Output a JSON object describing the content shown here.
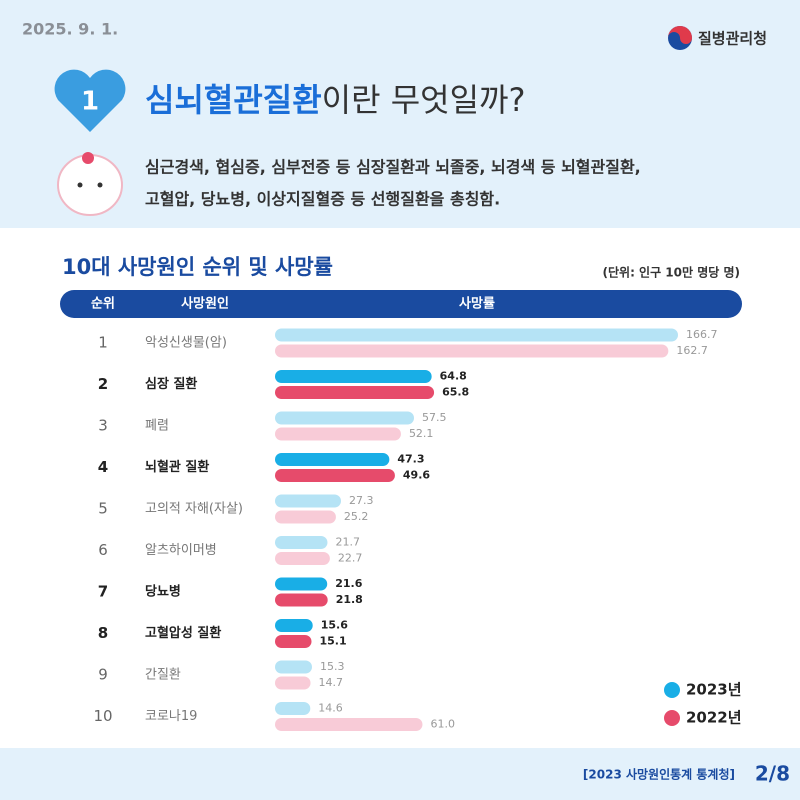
{
  "date": "2025. 9. 1.",
  "agency": "질병관리청",
  "badge": "1",
  "headline_highlight": "심뇌혈관질환",
  "headline_rest": "이란 무엇일까?",
  "description_lines": [
    "심근경색, 협심증, 심부전증 등 심장질환과 뇌졸중, 뇌경색 등 뇌혈관질환,",
    "고혈압, 당뇨병, 이상지질혈증 등 선행질환을 총칭함."
  ],
  "chart_data": {
    "type": "bar",
    "title": "10대 사망원인 순위 및 사망률",
    "unit_note": "(단위: 인구 10만 명당 명)",
    "column_headers": [
      "순위",
      "사망원인",
      "사망률"
    ],
    "ranks": [
      1,
      2,
      3,
      4,
      5,
      6,
      7,
      8,
      9,
      10
    ],
    "categories": [
      "악성신생물(암)",
      "심장 질환",
      "폐렴",
      "뇌혈관 질환",
      "고의적 자해(자살)",
      "알츠하이머병",
      "당뇨병",
      "고혈압성 질환",
      "간질환",
      "코로나19"
    ],
    "highlighted": [
      false,
      true,
      false,
      true,
      false,
      false,
      true,
      true,
      false,
      false
    ],
    "series": [
      {
        "name": "2023년",
        "color": "#19aee6",
        "pale_color": "#b5e3f5",
        "values": [
          166.7,
          64.8,
          57.5,
          47.3,
          27.3,
          21.7,
          21.6,
          15.6,
          15.3,
          14.6
        ],
        "value_labels": [
          "166.7",
          "64.8",
          "57.5",
          "47.3",
          "27.3",
          "21.7",
          "21.6",
          "15.6",
          "15.3",
          "14.6"
        ]
      },
      {
        "name": "2022년",
        "color": "#e64b6b",
        "pale_color": "#f8cbd7",
        "values": [
          162.7,
          65.8,
          52.1,
          49.6,
          25.2,
          22.7,
          21.8,
          15.1,
          14.7,
          61
        ],
        "value_labels": [
          "162.7",
          "65.8",
          "52.1",
          "49.6",
          "25.2",
          "22.7",
          "21.8",
          "15.1",
          "14.7",
          "61.0"
        ]
      }
    ]
  },
  "footer": {
    "source": "[2023 사망원인통계 통계청]",
    "page": "2/8"
  }
}
